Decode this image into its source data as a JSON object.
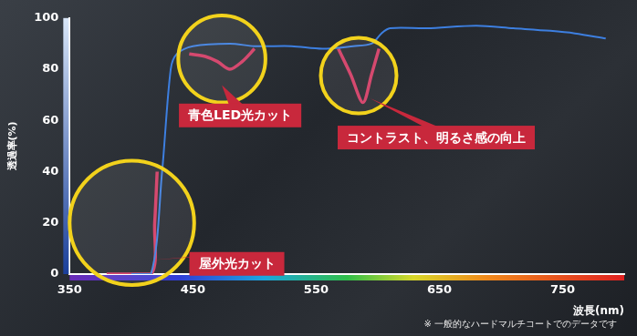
{
  "chart_data": {
    "type": "line",
    "x_label": "波長(nm)",
    "y_label": "透過率(%)",
    "note": "※ 一般的なハードマルチコートでのデータです",
    "xlim": [
      350,
      800
    ],
    "xticks": [
      350,
      450,
      550,
      650,
      750
    ],
    "ylim": [
      0,
      100
    ],
    "yticks": [
      0,
      20,
      40,
      60,
      80,
      100
    ],
    "grid": false,
    "annotations": [
      "屋外光カット",
      "青色LED光カット",
      "コントラスト、明るさ感の向上"
    ],
    "series": [
      {
        "color": "#3d7fe0",
        "x": [
          400,
          416,
          425,
          432,
          437,
          450,
          480,
          500,
          530,
          555,
          580,
          595,
          603,
          610,
          640,
          680,
          710,
          740,
          760,
          785
        ],
        "values": [
          0,
          0,
          40,
          80,
          86,
          89,
          90,
          89,
          89,
          88,
          89,
          90,
          94,
          96,
          96,
          97,
          96,
          95,
          94,
          92
        ]
      },
      {
        "color": "#d23a63",
        "x": [
          380,
          416,
          419,
          421,
          430,
          447,
          460,
          470,
          480,
          490,
          500,
          530,
          568,
          578,
          588,
          595,
          601
        ],
        "values": [
          0,
          0,
          20,
          40,
          null,
          86,
          85,
          83,
          80,
          83,
          88,
          null,
          88,
          78,
          67,
          78,
          88
        ]
      }
    ]
  }
}
